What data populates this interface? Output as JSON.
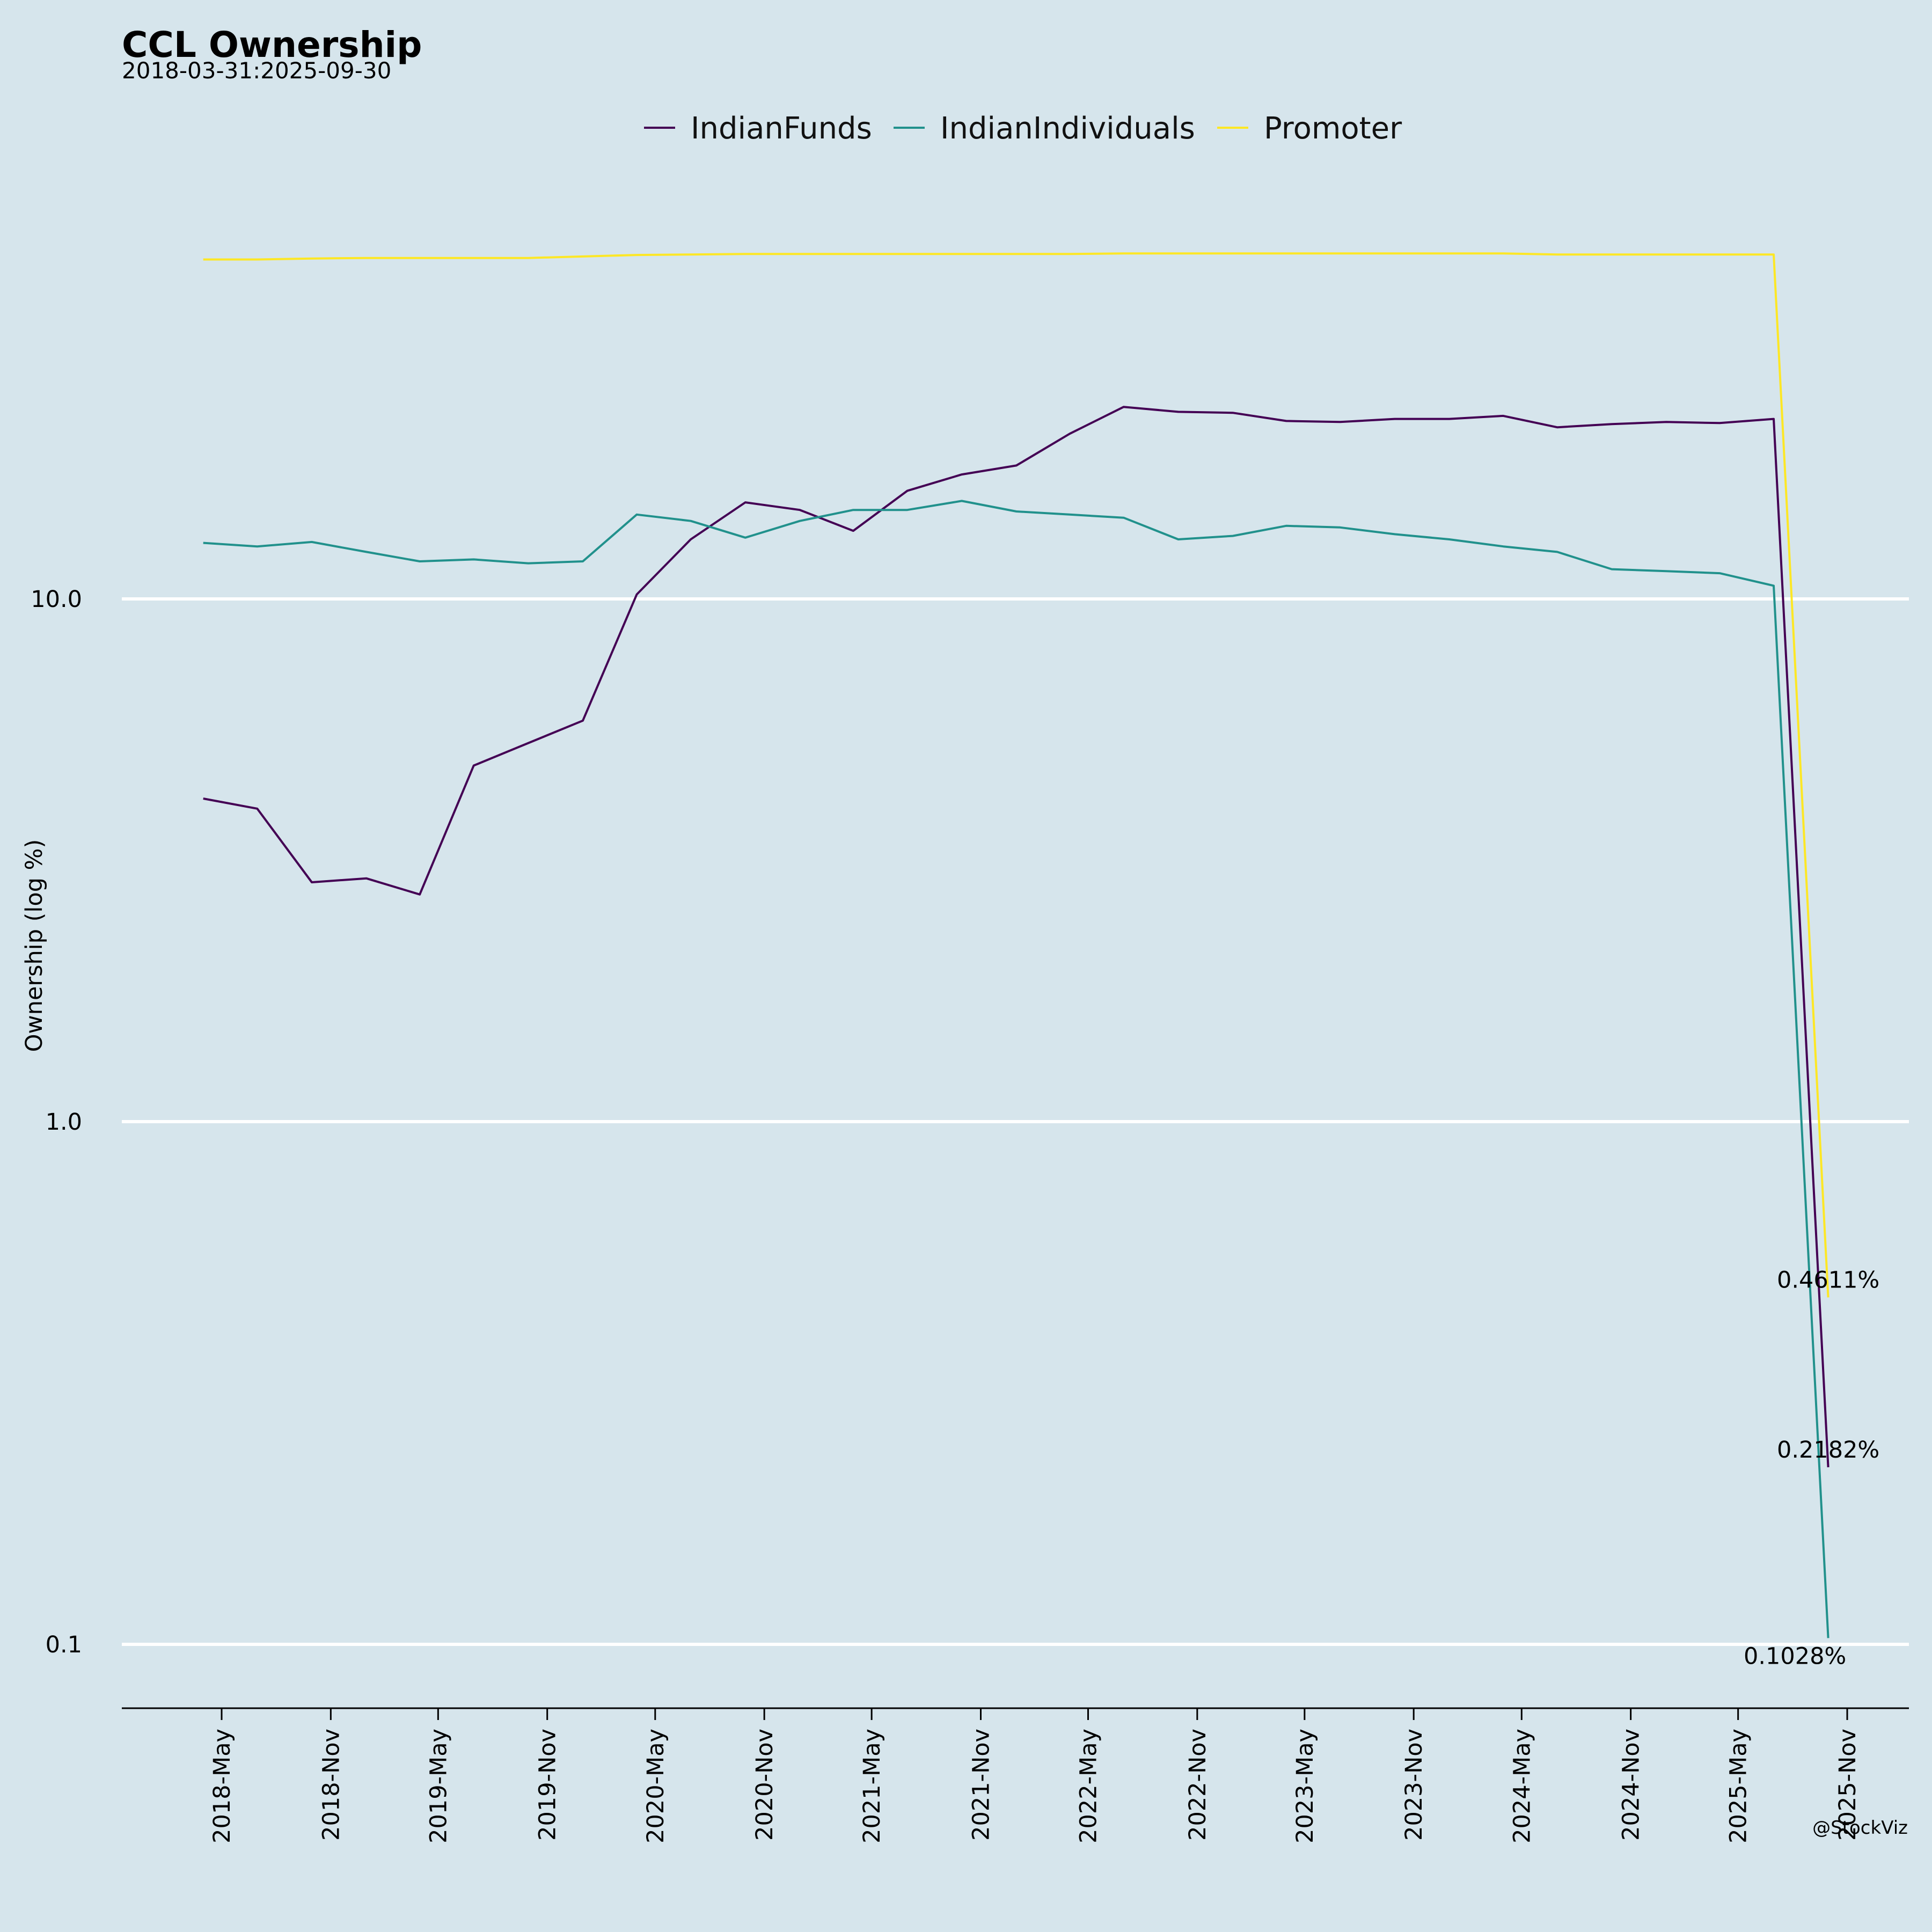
{
  "chart_data": {
    "type": "line",
    "title": "CCL Ownership",
    "subtitle": "2018-03-31:2025-09-30",
    "ylabel": "Ownership (log %)",
    "xlabel": "",
    "yscale": "log",
    "ylim": [
      0.08,
      90
    ],
    "xlim": [
      "2018-02-15",
      "2025-12-31"
    ],
    "grid": "horizontal at 0.1, 1.0, 10.0",
    "legend_position": "top-center",
    "y_ticks": [
      0.1,
      1.0,
      10.0
    ],
    "y_tick_labels": [
      "0.1",
      "1.0",
      "10.0"
    ],
    "x_ticks": [
      "2018-05-01",
      "2018-11-01",
      "2019-05-01",
      "2019-11-01",
      "2020-05-01",
      "2020-11-01",
      "2021-05-01",
      "2021-11-01",
      "2022-05-01",
      "2022-11-01",
      "2023-05-01",
      "2023-11-01",
      "2024-05-01",
      "2024-11-01",
      "2025-05-01",
      "2025-11-01"
    ],
    "x_tick_labels": [
      "2018-May",
      "2018-Nov",
      "2019-May",
      "2019-Nov",
      "2020-May",
      "2020-Nov",
      "2021-May",
      "2021-Nov",
      "2022-May",
      "2022-Nov",
      "2023-May",
      "2023-Nov",
      "2024-May",
      "2024-Nov",
      "2025-May",
      "2025-Nov"
    ],
    "x": [
      "2018-03-31",
      "2018-06-30",
      "2018-09-30",
      "2018-12-31",
      "2019-03-31",
      "2019-06-30",
      "2019-09-30",
      "2019-12-31",
      "2020-03-31",
      "2020-06-30",
      "2020-09-30",
      "2020-12-31",
      "2021-03-31",
      "2021-06-30",
      "2021-09-30",
      "2021-12-31",
      "2022-03-31",
      "2022-06-30",
      "2022-09-30",
      "2022-12-31",
      "2023-03-31",
      "2023-06-30",
      "2023-09-30",
      "2023-12-31",
      "2024-03-31",
      "2024-06-30",
      "2024-09-30",
      "2024-12-31",
      "2025-03-31",
      "2025-06-30",
      "2025-09-30"
    ],
    "series": [
      {
        "name": "IndianFunds",
        "color": "#440154",
        "values": [
          4.15,
          3.97,
          2.87,
          2.92,
          2.72,
          4.8,
          5.3,
          5.85,
          10.2,
          13.0,
          15.3,
          14.8,
          13.5,
          16.1,
          17.3,
          18.0,
          20.7,
          23.3,
          22.8,
          22.7,
          21.9,
          21.8,
          22.1,
          22.1,
          22.4,
          21.3,
          21.6,
          21.8,
          21.7,
          22.1,
          0.2182
        ],
        "end_label": "0.2182%"
      },
      {
        "name": "IndianIndividuals",
        "color": "#21918c",
        "values": [
          12.8,
          12.6,
          12.85,
          12.3,
          11.8,
          11.9,
          11.7,
          11.8,
          14.5,
          14.1,
          13.1,
          14.1,
          14.8,
          14.8,
          15.4,
          14.7,
          14.5,
          14.3,
          13.0,
          13.2,
          13.8,
          13.7,
          13.3,
          13.0,
          12.6,
          12.3,
          11.4,
          11.3,
          11.2,
          10.6,
          0.1028
        ],
        "end_label": "0.1028%"
      },
      {
        "name": "Promoter",
        "color": "#fde725",
        "values": [
          44.6,
          44.6,
          44.8,
          44.9,
          44.9,
          44.9,
          44.9,
          45.2,
          45.5,
          45.6,
          45.7,
          45.7,
          45.7,
          45.7,
          45.7,
          45.7,
          45.7,
          45.8,
          45.8,
          45.8,
          45.8,
          45.8,
          45.8,
          45.8,
          45.8,
          45.6,
          45.6,
          45.6,
          45.6,
          45.6,
          0.4611
        ],
        "end_label": "0.4611%"
      }
    ]
  },
  "credit": "@StockViz"
}
